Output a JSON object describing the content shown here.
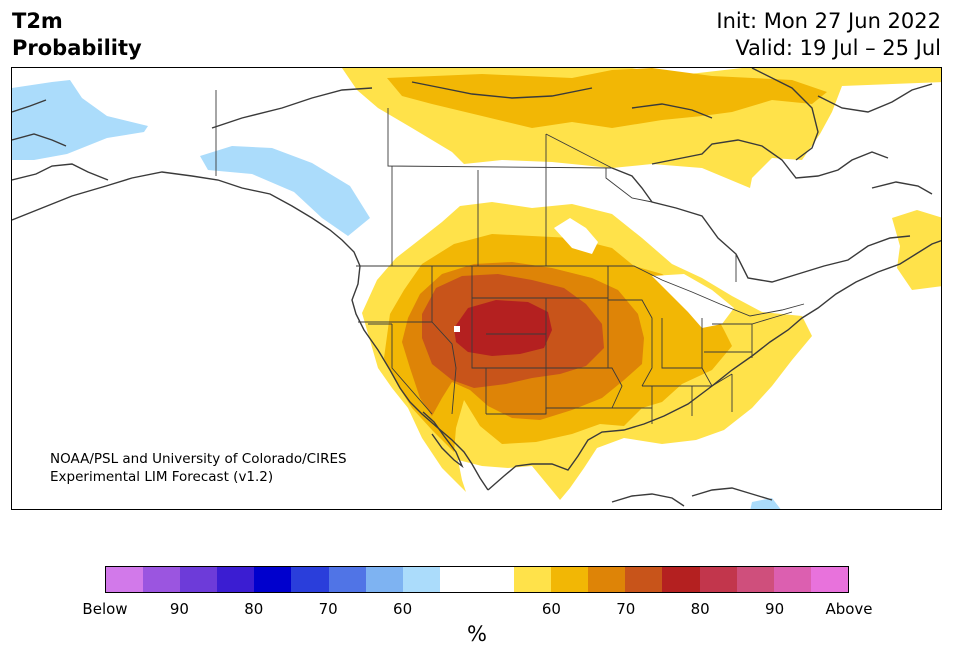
{
  "header": {
    "title_line1": "T2m",
    "title_line2": "Probability",
    "init": "Init: Mon 27 Jun 2022",
    "valid": "Valid: 19 Jul – 25 Jul"
  },
  "credit": {
    "line1": "NOAA/PSL and University of Colorado/CIRES",
    "line2": "Experimental LIM Forecast (v1.2)"
  },
  "colorbar": {
    "colors": [
      "#d279ea",
      "#9b55e0",
      "#6d3bd9",
      "#3b1dd2",
      "#0000cd",
      "#2a3edb",
      "#5074e6",
      "#7eb3f2",
      "#abdcfb",
      "#ffffff",
      "#ffffff",
      "#ffe24a",
      "#f2b705",
      "#de8407",
      "#c8541a",
      "#b42020",
      "#c2364c",
      "#cf4f7c",
      "#dc5fb0",
      "#e872dc"
    ],
    "tick_labels": [
      "Below",
      "90",
      "80",
      "70",
      "60",
      "60",
      "70",
      "80",
      "90",
      "Above"
    ],
    "unit": "%"
  },
  "legend_colors": {
    "cold": "#abdcfb",
    "warm_50_60": "#ffe24a",
    "warm_60_65": "#f2b705",
    "warm_65_70": "#de8407",
    "warm_70_75": "#c8541a",
    "warm_75_80": "#b42020"
  }
}
